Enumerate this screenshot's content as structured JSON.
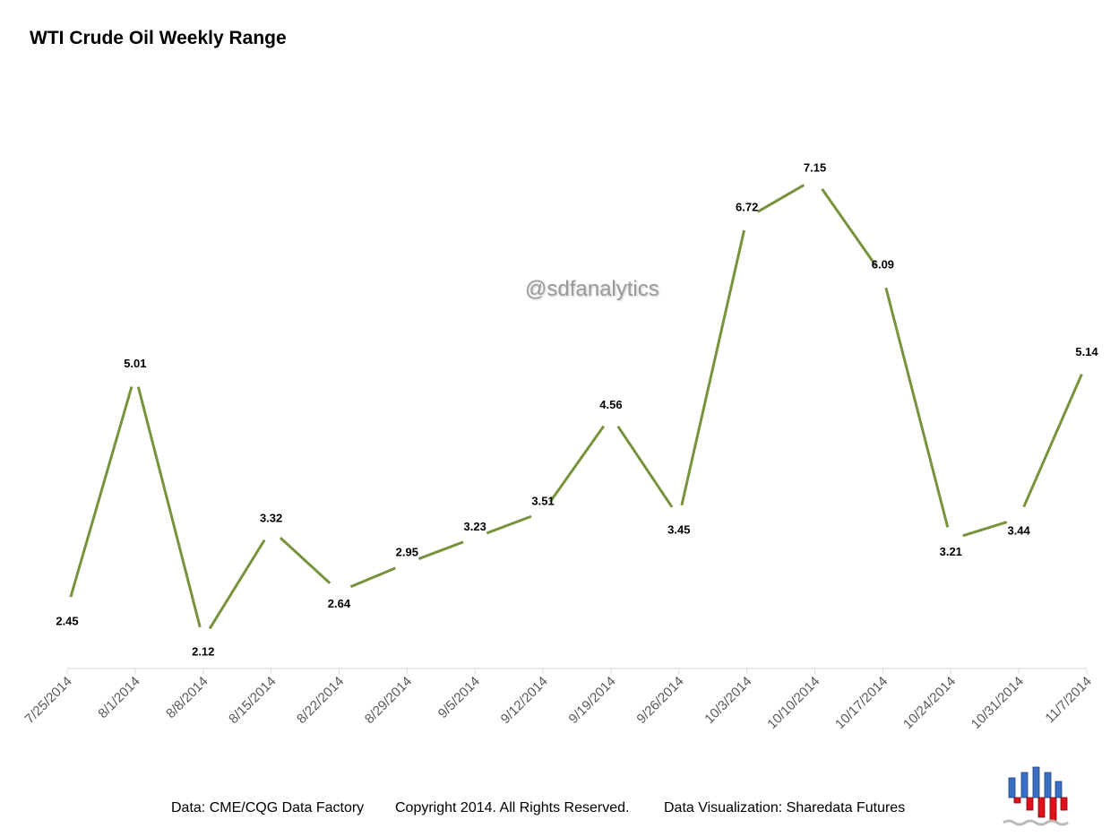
{
  "chart_data": {
    "type": "line",
    "title": "WTI Crude Oil Weekly Range",
    "categories": [
      "7/25/2014",
      "8/1/2014",
      "8/8/2014",
      "8/15/2014",
      "8/22/2014",
      "8/29/2014",
      "9/5/2014",
      "9/12/2014",
      "9/19/2014",
      "9/26/2014",
      "10/3/2014",
      "10/10/2014",
      "10/17/2014",
      "10/24/2014",
      "10/31/2014",
      "11/7/2014"
    ],
    "series": [
      {
        "values": [
          2.45,
          5.01,
          2.12,
          3.32,
          2.64,
          2.95,
          3.23,
          3.51,
          4.56,
          3.45,
          6.72,
          7.15,
          6.09,
          3.21,
          3.44,
          5.14
        ],
        "color": "#77933c"
      }
    ],
    "label_positions": [
      "below",
      "above",
      "below",
      "above",
      "below",
      "above",
      "above",
      "above",
      "above",
      "below",
      "above",
      "above",
      "above",
      "below",
      "below",
      "above"
    ],
    "ylim": [
      1.8,
      7.8
    ],
    "grid": false,
    "legend": "none",
    "xlabel": "",
    "ylabel": ""
  },
  "watermark": "@sdfanalytics",
  "footer": {
    "source": "Data: CME/CQG Data Factory",
    "copyright": "Copyright 2014. All Rights Reserved.",
    "credit": "Data Visualization: Sharedata Futures"
  },
  "logo": {
    "icon": "sharedata-bar-logo-icon",
    "upper_color": "#3a6fc4",
    "lower_color": "#e0101c"
  }
}
